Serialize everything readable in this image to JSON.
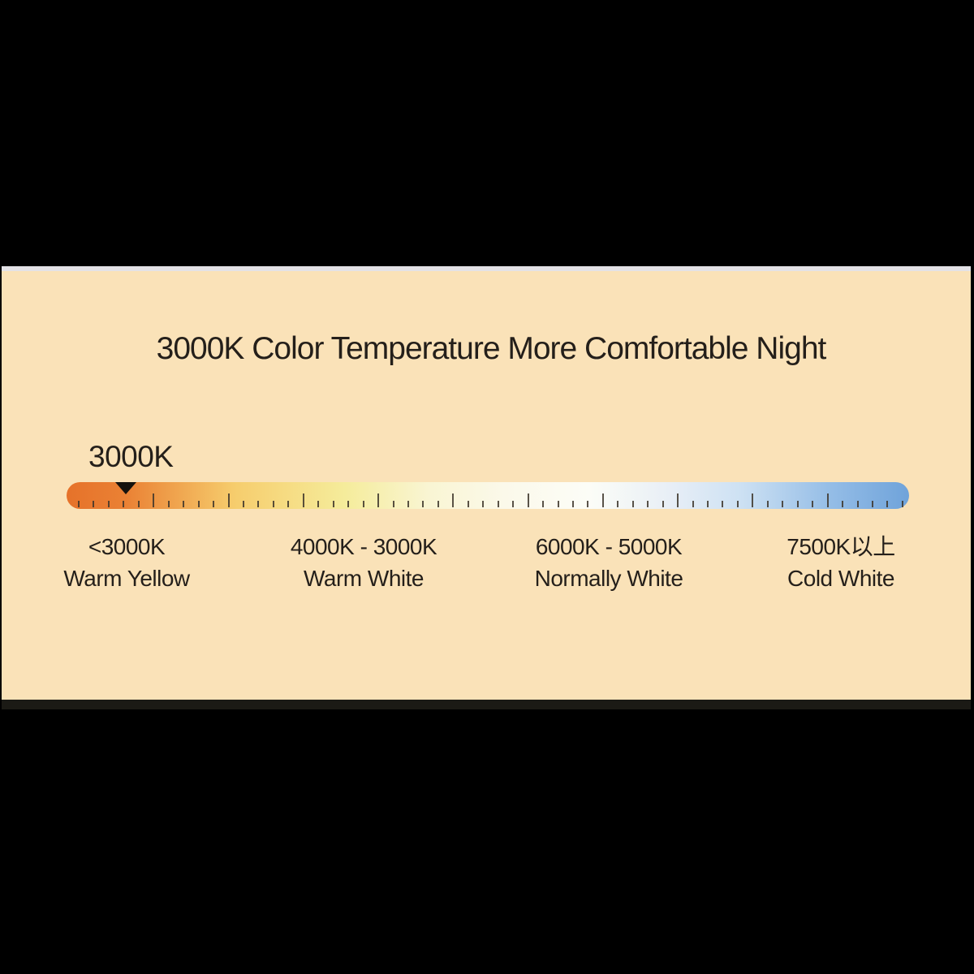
{
  "infographic": {
    "title": "3000K Color Temperature More Comfortable Night",
    "colors": {
      "panel_background": "#fae2b8",
      "letterbox": "#000000",
      "top_strip": "#e3e2e6",
      "text": "#241f1a",
      "pointer": "#15120e",
      "tick": "#3d352a"
    },
    "scale_bar": {
      "current_value_label": "3000K",
      "tick_count": 56,
      "major_tick_every": 5,
      "gradient": [
        {
          "color": "#e6722a",
          "pos": 0
        },
        {
          "color": "#ea8134",
          "pos": 7
        },
        {
          "color": "#f6cd6d",
          "pos": 20
        },
        {
          "color": "#f5ec9b",
          "pos": 33
        },
        {
          "color": "#f9f5d3",
          "pos": 43
        },
        {
          "color": "#fbf9ea",
          "pos": 52
        },
        {
          "color": "#fcfdf7",
          "pos": 62
        },
        {
          "color": "#e7eef6",
          "pos": 72
        },
        {
          "color": "#cde1f3",
          "pos": 80
        },
        {
          "color": "#93bce6",
          "pos": 91
        },
        {
          "color": "#6fa3da",
          "pos": 100
        }
      ]
    },
    "temperature_ranges": [
      {
        "range": "<3000K",
        "name": "Warm Yellow"
      },
      {
        "range": "4000K - 3000K",
        "name": "Warm White"
      },
      {
        "range": "6000K - 5000K",
        "name": "Normally White"
      },
      {
        "range": "7500K以上",
        "name": "Cold White"
      }
    ]
  }
}
